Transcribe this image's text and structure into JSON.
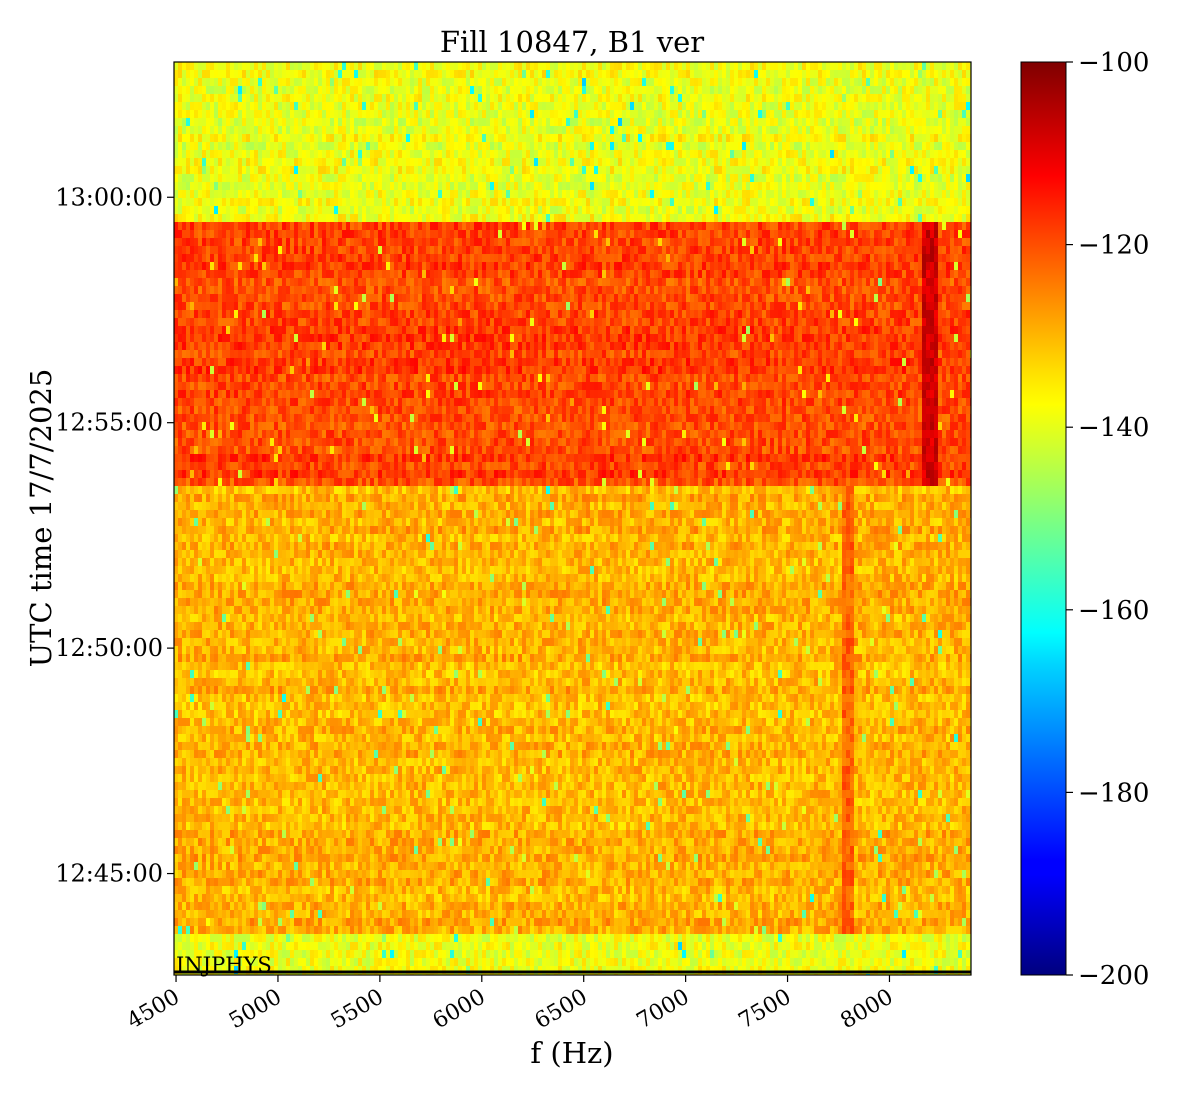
{
  "chart_data": {
    "type": "heatmap",
    "title": "Fill 10847, B1 ver",
    "xlabel": "f (Hz)",
    "ylabel": "UTC time 17/7/2025",
    "xlim": [
      4490,
      8400
    ],
    "x_ticks": [
      4500,
      5000,
      5500,
      6000,
      6500,
      7000,
      7500,
      8000
    ],
    "x_tick_labels": [
      "4500",
      "5000",
      "5500",
      "6000",
      "6500",
      "7000",
      "7500",
      "8000"
    ],
    "y_ticks": [
      "12:45:00",
      "12:50:00",
      "12:55:00",
      "13:00:00"
    ],
    "y_range": [
      "12:42:45",
      "13:03:00"
    ],
    "colormap": "jet",
    "colorbar": {
      "range": [
        -200,
        -100
      ],
      "ticks": [
        -100,
        -120,
        -140,
        -160,
        -180,
        -200
      ],
      "tick_labels": [
        "−100",
        "−120",
        "−140",
        "−160",
        "−180",
        "−200"
      ]
    },
    "regions": [
      {
        "from": "12:42:45",
        "to": "12:43:40",
        "level": -138
      },
      {
        "from": "12:43:40",
        "to": "12:53:40",
        "level": -130
      },
      {
        "from": "12:53:40",
        "to": "12:59:30",
        "level": -119
      },
      {
        "from": "12:59:30",
        "to": "13:03:00",
        "level": -139
      }
    ],
    "features": [
      {
        "f": 8200,
        "from": "12:53:40",
        "to": "12:59:30",
        "level": -108
      },
      {
        "f": 7800,
        "from": "12:43:40",
        "to": "12:53:40",
        "level": -122
      }
    ],
    "annotation": {
      "text": "INJPHYS",
      "time": "12:42:45"
    },
    "grid": false
  }
}
